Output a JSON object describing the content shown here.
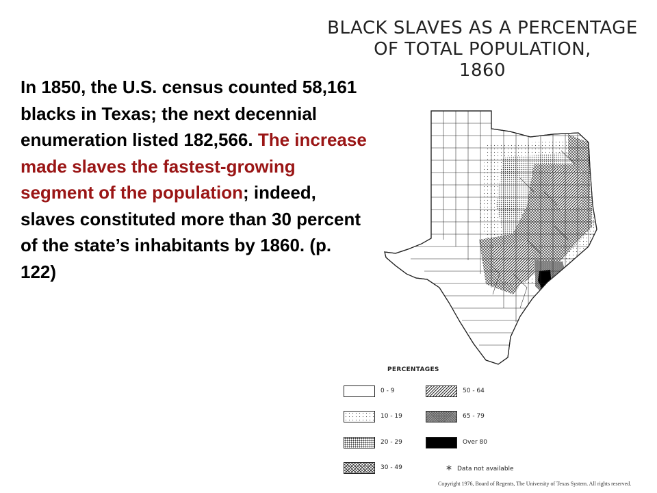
{
  "map_title": {
    "line1": "BLACK SLAVES AS A PERCENTAGE",
    "line2": "OF TOTAL POPULATION,",
    "line3": "1860"
  },
  "body_text": {
    "part1": "In 1850, the U.S. census counted 58,161 blacks in Texas; the next decennial enumeration listed 182,566. ",
    "highlight": "The increase made slaves the fastest-growing segment of the population",
    "part2": "; indeed, slaves constituted more than 30 percent of the state’s inhabitants by 1860. (p. 122)",
    "highlight_color": "#9a1515"
  },
  "legend": {
    "heading": "PERCENTAGES",
    "items": [
      {
        "label": "0 - 9",
        "pattern": "blank"
      },
      {
        "label": "10 - 19",
        "pattern": "sparse-dots"
      },
      {
        "label": "20 - 29",
        "pattern": "dense-dots"
      },
      {
        "label": "30 - 49",
        "pattern": "crosshatch"
      },
      {
        "label": "50 - 64",
        "pattern": "diagonal-lines"
      },
      {
        "label": "65 - 79",
        "pattern": "gray-crosshatch"
      },
      {
        "label": "Over 80",
        "pattern": "solid-black"
      }
    ],
    "not_available_symbol": "*",
    "not_available_label": "Data not available"
  },
  "copyright": "Copyright 1976, Board of Regents, The University of Texas System. All rights reserved."
}
